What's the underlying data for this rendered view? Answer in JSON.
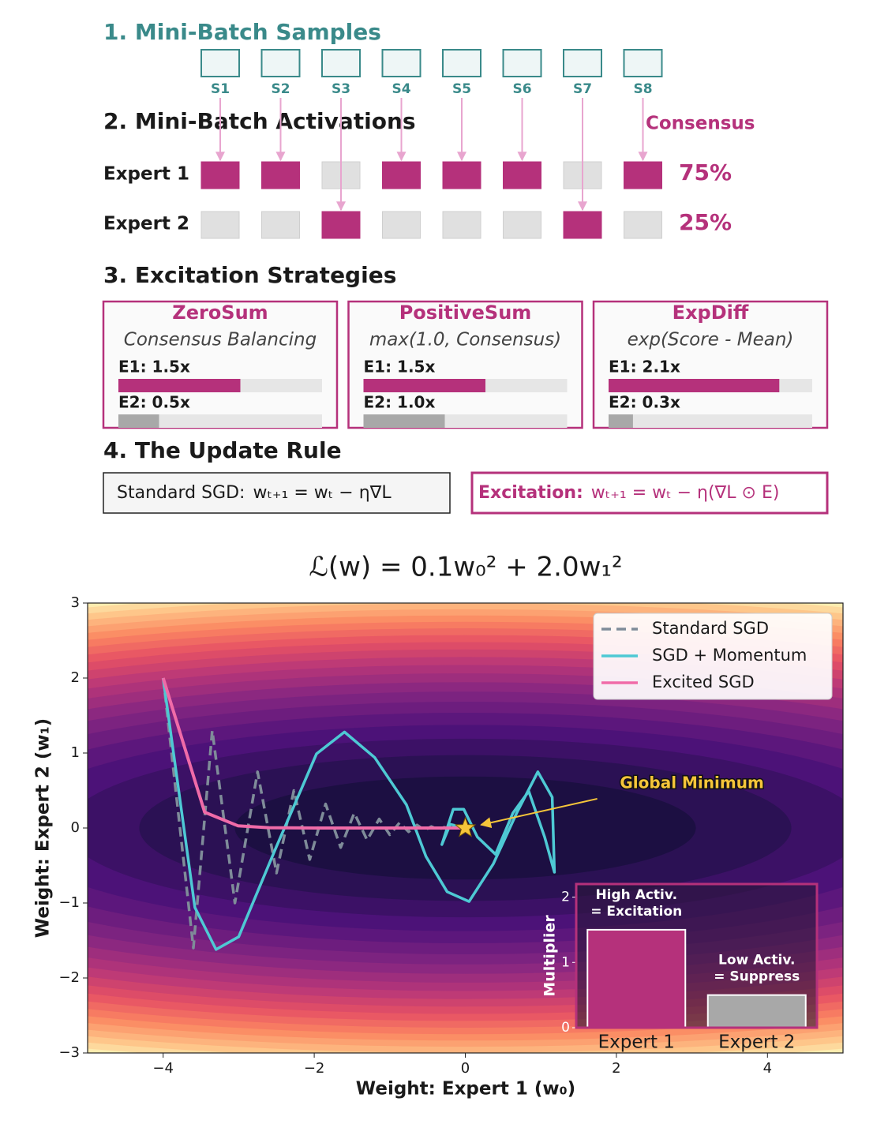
{
  "diagram": {
    "samples": {
      "title": "1. Mini-Batch Samples",
      "labels": [
        "S1",
        "S2",
        "S3",
        "S4",
        "S5",
        "S6",
        "S7",
        "S8"
      ]
    },
    "activations": {
      "title": "2. Mini-Batch Activations",
      "consensus_title": "Consensus",
      "experts": [
        {
          "name": "Expert 1",
          "active": [
            true,
            true,
            false,
            true,
            true,
            true,
            false,
            true
          ],
          "consensus": "75%"
        },
        {
          "name": "Expert 2",
          "active": [
            false,
            false,
            true,
            false,
            false,
            false,
            true,
            false
          ],
          "consensus": "25%"
        }
      ]
    },
    "strategies": {
      "title": "3. Excitation Strategies",
      "bar_colors": [
        "#b5317b",
        "#a8a8a8"
      ],
      "items": [
        {
          "name": "ZeroSum",
          "description": "Consensus Balancing",
          "bars": [
            {
              "label": "E1: 1.5x",
              "value": 1.5
            },
            {
              "label": "E2: 0.5x",
              "value": 0.5
            }
          ]
        },
        {
          "name": "PositiveSum",
          "description": "max(1.0, Consensus)",
          "bars": [
            {
              "label": "E1: 1.5x",
              "value": 1.5
            },
            {
              "label": "E2: 1.0x",
              "value": 1.0
            }
          ]
        },
        {
          "name": "ExpDiff",
          "description": "exp(Score - Mean)",
          "bars": [
            {
              "label": "E1: 2.1x",
              "value": 2.1
            },
            {
              "label": "E2: 0.3x",
              "value": 0.3
            }
          ]
        }
      ]
    },
    "update_rule": {
      "title": "4. The Update Rule",
      "standard": {
        "label": "Standard SGD:",
        "formula": "wₜ₊₁ = wₜ − η∇L"
      },
      "excitation": {
        "label": "Excitation:",
        "formula": "wₜ₊₁ = wₜ − η(∇L ⊙ E)"
      }
    }
  },
  "chart_data": [
    {
      "type": "line",
      "title": "ℒ(w) = 0.1w₀² + 2.0w₁²",
      "xlabel": "Weight: Expert 1 (w₀)",
      "ylabel": "Weight: Expert 2 (w₁)",
      "xlim": [
        -5,
        5
      ],
      "ylim": [
        -3,
        3
      ],
      "xticks": [
        {
          "value": -4,
          "label": "−4"
        },
        {
          "value": -2,
          "label": "−2"
        },
        0,
        2,
        4
      ],
      "yticks": [
        {
          "value": -3,
          "label": "−3"
        },
        {
          "value": -2,
          "label": "−2"
        },
        {
          "value": -1,
          "label": "−1"
        },
        0,
        1,
        2,
        3
      ],
      "legend": "upper right",
      "series": [
        {
          "name": "Standard SGD",
          "color": "#7f8c99",
          "linestyle": "dashed",
          "x": [
            -4,
            -3.6,
            -3.35,
            -3.05,
            -2.75,
            -2.5,
            -2.27,
            -2.06,
            -1.85,
            -1.65,
            -1.47,
            -1.3,
            -1.14,
            -1.0,
            -0.87,
            -0.75,
            -0.64,
            -0.54,
            -0.45,
            -0.36,
            -0.28,
            -0.2,
            -0.12
          ],
          "values": [
            2,
            -1.6,
            1.3,
            -1.0,
            0.75,
            -0.6,
            0.5,
            -0.42,
            0.32,
            -0.26,
            0.2,
            -0.16,
            0.12,
            -0.09,
            0.07,
            -0.05,
            0.04,
            -0.03,
            0.02,
            -0.02,
            0.01,
            -0.01,
            0
          ]
        },
        {
          "name": "SGD + Momentum",
          "color": "#4ec9d4",
          "linestyle": "solid",
          "x": [
            -4,
            -3.58,
            -3.3,
            -3.0,
            -2.51,
            -1.97,
            -1.6,
            -1.2,
            -0.78,
            -0.52,
            -0.24,
            0.05,
            0.37,
            0.68,
            0.96,
            1.15,
            1.18,
            1.05,
            0.84,
            0.63,
            0.4,
            0.16,
            -0.02,
            -0.16,
            -0.31,
            -0.2,
            0
          ],
          "values": [
            2,
            -1.06,
            -1.62,
            -1.45,
            -0.27,
            0.99,
            1.28,
            0.94,
            0.31,
            -0.38,
            -0.85,
            -0.98,
            -0.48,
            0.2,
            0.75,
            0.41,
            -0.59,
            -0.12,
            0.49,
            0.2,
            -0.35,
            -0.12,
            0.25,
            0.25,
            -0.22,
            0.05,
            0
          ]
        },
        {
          "name": "Excited SGD",
          "color": "#f06ba8",
          "linestyle": "solid",
          "x": [
            -4,
            -3.45,
            -3.01,
            -2.6,
            -2.0,
            -1.4,
            -0.8,
            -0.3,
            0
          ],
          "values": [
            2,
            0.21,
            0.03,
            0.004,
            0,
            0,
            0,
            0,
            0
          ]
        }
      ],
      "annotations": [
        {
          "text": "Global Minimum",
          "xy": [
            0,
            0
          ],
          "xytext": [
            3.0,
            0.59
          ],
          "color": "#f5c53a"
        }
      ]
    },
    {
      "type": "bar",
      "ylabel": "Multiplier",
      "categories": [
        "Expert 1",
        "Expert 2"
      ],
      "values": [
        1.5,
        0.5
      ],
      "colors": [
        "#b5317b",
        "#a8a8a8"
      ],
      "ylim": [
        0,
        2.2
      ],
      "yticks": [
        0,
        1,
        2
      ],
      "annotations": [
        [
          "High Activ.",
          "= Excitation"
        ],
        [
          "Low Activ.",
          "= Suppress"
        ]
      ]
    }
  ]
}
